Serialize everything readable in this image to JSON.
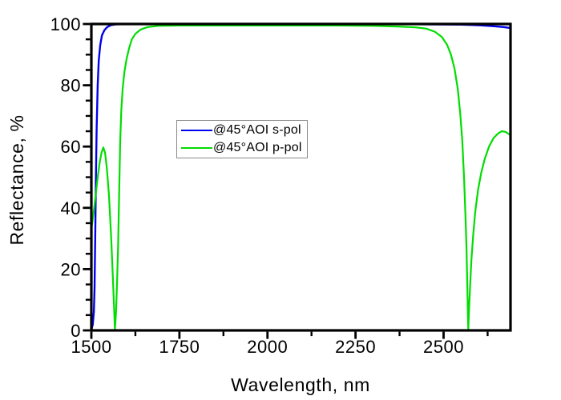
{
  "chart_data": {
    "type": "line",
    "title": "",
    "xlabel": "Wavelength, nm",
    "ylabel": "Reflectance, %",
    "xlim": [
      1500,
      2690
    ],
    "ylim": [
      0,
      100
    ],
    "x_major_ticks": [
      1500,
      1750,
      2000,
      2250,
      2500
    ],
    "x_minor_ticks": [
      1625,
      1875,
      2125,
      2375,
      2625
    ],
    "y_major_ticks": [
      0,
      20,
      40,
      60,
      80,
      100
    ],
    "y_minor_ticks": [
      5,
      10,
      15,
      25,
      30,
      35,
      45,
      50,
      55,
      65,
      70,
      75,
      85,
      90,
      95
    ],
    "grid": false,
    "plot_background": "#ffffff",
    "frame_color": "#000000",
    "legend_position": "inside-center-left",
    "series": [
      {
        "name": "@45°AOI s-pol",
        "color": "#0000ee",
        "stroke_width": 2.4,
        "points": [
          [
            1500,
            0
          ],
          [
            1504,
            2
          ],
          [
            1507,
            6
          ],
          [
            1509,
            14
          ],
          [
            1511,
            30
          ],
          [
            1513,
            50
          ],
          [
            1515,
            66
          ],
          [
            1518,
            80
          ],
          [
            1521,
            88
          ],
          [
            1525,
            93
          ],
          [
            1530,
            96.3
          ],
          [
            1537,
            98
          ],
          [
            1545,
            99
          ],
          [
            1555,
            99.6
          ],
          [
            1570,
            99.9
          ],
          [
            1600,
            100
          ],
          [
            1750,
            100
          ],
          [
            1950,
            100
          ],
          [
            2150,
            100
          ],
          [
            2350,
            100
          ],
          [
            2450,
            99.9
          ],
          [
            2550,
            99.8
          ],
          [
            2600,
            99.6
          ],
          [
            2640,
            99.3
          ],
          [
            2670,
            99
          ],
          [
            2690,
            98.7
          ]
        ]
      },
      {
        "name": "@45°AOI p-pol",
        "color": "#00dd00",
        "stroke_width": 2.2,
        "points": [
          [
            1500,
            33
          ],
          [
            1506,
            38
          ],
          [
            1512,
            44
          ],
          [
            1518,
            50
          ],
          [
            1524,
            55
          ],
          [
            1529,
            58
          ],
          [
            1534,
            59.7
          ],
          [
            1539,
            58
          ],
          [
            1544,
            53
          ],
          [
            1550,
            44
          ],
          [
            1556,
            31
          ],
          [
            1560,
            20
          ],
          [
            1564,
            9
          ],
          [
            1567,
            0.3
          ],
          [
            1570,
            6
          ],
          [
            1573,
            16
          ],
          [
            1576,
            28
          ],
          [
            1579,
            45
          ],
          [
            1582,
            62
          ],
          [
            1585,
            72
          ],
          [
            1589,
            79
          ],
          [
            1594,
            84.5
          ],
          [
            1600,
            88.5
          ],
          [
            1607,
            92
          ],
          [
            1615,
            95
          ],
          [
            1625,
            96.8
          ],
          [
            1640,
            98.2
          ],
          [
            1660,
            99
          ],
          [
            1690,
            99.4
          ],
          [
            1750,
            99.5
          ],
          [
            1900,
            99.5
          ],
          [
            2050,
            99.5
          ],
          [
            2200,
            99.5
          ],
          [
            2300,
            99.4
          ],
          [
            2370,
            99.2
          ],
          [
            2420,
            98.9
          ],
          [
            2450,
            98.5
          ],
          [
            2475,
            97.5
          ],
          [
            2495,
            95.8
          ],
          [
            2510,
            93.2
          ],
          [
            2521,
            90
          ],
          [
            2531,
            85.5
          ],
          [
            2540,
            79
          ],
          [
            2547,
            71
          ],
          [
            2553,
            62
          ],
          [
            2558,
            50
          ],
          [
            2562,
            38
          ],
          [
            2565,
            27
          ],
          [
            2567,
            17
          ],
          [
            2569,
            6
          ],
          [
            2570,
            0.3
          ],
          [
            2572,
            6
          ],
          [
            2575,
            14
          ],
          [
            2579,
            23
          ],
          [
            2584,
            31
          ],
          [
            2590,
            39
          ],
          [
            2598,
            46
          ],
          [
            2607,
            51.5
          ],
          [
            2617,
            56
          ],
          [
            2629,
            60
          ],
          [
            2642,
            62.8
          ],
          [
            2654,
            64.2
          ],
          [
            2665,
            65
          ],
          [
            2676,
            64.8
          ],
          [
            2690,
            63.7
          ]
        ]
      }
    ]
  }
}
